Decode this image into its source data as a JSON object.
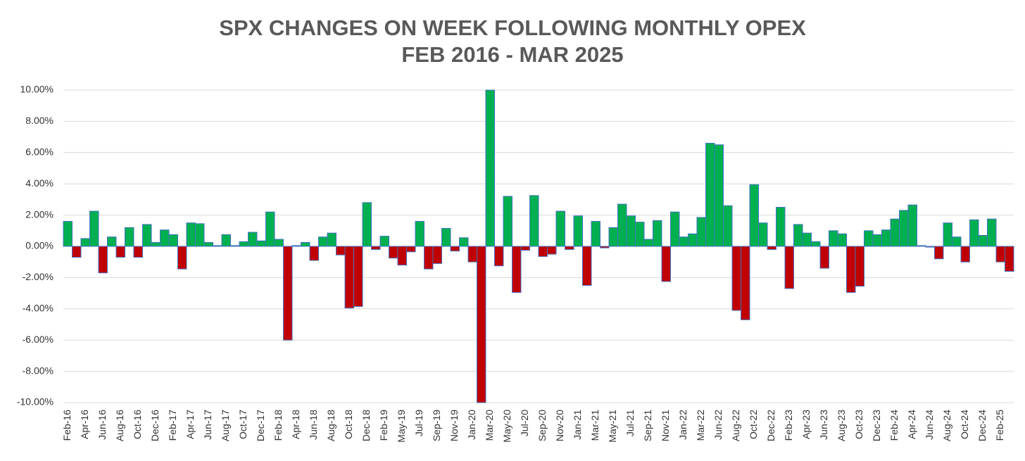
{
  "chart_data": {
    "type": "bar",
    "title": "SPX CHANGES ON WEEK FOLLOWING MONTHLY OPEX",
    "subtitle": "FEB 2016 - MAR 2025",
    "categories": [
      "Feb-16",
      null,
      "Apr-16",
      null,
      "Jun-16",
      null,
      "Aug-16",
      null,
      "Oct-16",
      null,
      "Dec-16",
      null,
      "Feb-17",
      null,
      "Apr-17",
      null,
      "Jun-17",
      null,
      "Aug-17",
      null,
      "Oct-17",
      null,
      "Dec-17",
      null,
      "Feb-18",
      null,
      "Apr-18",
      null,
      "Jun-18",
      null,
      "Aug-18",
      null,
      "Oct-18",
      null,
      "Dec-18",
      null,
      "Feb-19",
      null,
      "May-19",
      null,
      "Jul-19",
      null,
      "Sep-19",
      null,
      "Nov-19",
      null,
      "Jan-20",
      null,
      "Mar-20",
      null,
      "May-20",
      null,
      "Jul-20",
      null,
      "Sep-20",
      null,
      "Nov-20",
      null,
      "Jan-21",
      null,
      "Mar-21",
      null,
      "May-21",
      null,
      "Jul-21",
      null,
      "Sep-21",
      null,
      "Nov-21",
      null,
      "Jan-22",
      null,
      "Mar-22",
      null,
      "Jun-22",
      null,
      "Aug-22",
      null,
      "Oct-22",
      null,
      "Dec-22",
      null,
      "Feb-23",
      null,
      "Apr-23",
      null,
      "Jun-23",
      null,
      "Aug-23",
      null,
      "Oct-23",
      null,
      "Dec-23",
      null,
      "Feb-24",
      null,
      "Apr-24",
      null,
      "Jun-24",
      null,
      "Aug-24",
      null,
      "Oct-24",
      null,
      "Dec-24",
      null,
      "Feb-25",
      null
    ],
    "values": [
      1.6,
      -0.7,
      0.5,
      2.25,
      -1.7,
      0.6,
      -0.7,
      1.2,
      -0.7,
      1.4,
      0.25,
      1.05,
      0.75,
      -1.45,
      1.5,
      1.45,
      0.25,
      0.05,
      0.75,
      0.05,
      0.3,
      0.9,
      0.35,
      2.2,
      0.45,
      -6.0,
      0.05,
      0.25,
      -0.9,
      0.6,
      0.85,
      -0.55,
      -3.95,
      -3.85,
      2.8,
      -0.2,
      0.65,
      -0.75,
      -1.2,
      -0.35,
      1.6,
      -1.45,
      -1.1,
      1.15,
      -0.3,
      0.55,
      -1.0,
      -10,
      10,
      -1.25,
      3.2,
      -2.95,
      -0.25,
      3.25,
      -0.65,
      -0.5,
      2.25,
      -0.2,
      1.95,
      -2.5,
      1.6,
      -0.1,
      1.2,
      2.7,
      1.95,
      1.55,
      0.45,
      1.65,
      -2.25,
      2.2,
      0.6,
      0.8,
      1.85,
      6.6,
      6.5,
      2.6,
      -4.1,
      -4.7,
      3.95,
      1.5,
      -0.2,
      2.5,
      -2.7,
      1.4,
      0.85,
      0.3,
      -1.4,
      1.0,
      0.8,
      -2.95,
      -2.55,
      1.0,
      0.75,
      1.05,
      1.75,
      2.3,
      2.65,
      0.05,
      -0.05,
      -0.8,
      1.5,
      0.6,
      -1.0,
      1.7,
      0.7,
      1.75,
      -1.0,
      -1.6
    ],
    "positive_color": "#00b050",
    "negative_color": "#c00000",
    "edge_color": "#4472c4",
    "ylim": [
      -10,
      10
    ],
    "yticks": [
      {
        "value": -10,
        "label": "-10.00%"
      },
      {
        "value": -8,
        "label": "-8.00%"
      },
      {
        "value": -6,
        "label": "-6.00%"
      },
      {
        "value": -4,
        "label": "-4.00%"
      },
      {
        "value": -2,
        "label": "-2.00%"
      },
      {
        "value": 0,
        "label": "0.00%"
      },
      {
        "value": 2,
        "label": "2.00%"
      },
      {
        "value": 4,
        "label": "4.00%"
      },
      {
        "value": 6,
        "label": "6.00%"
      },
      {
        "value": 8,
        "label": "8.00%"
      },
      {
        "value": 10,
        "label": "10.00%"
      }
    ],
    "grid": true
  }
}
